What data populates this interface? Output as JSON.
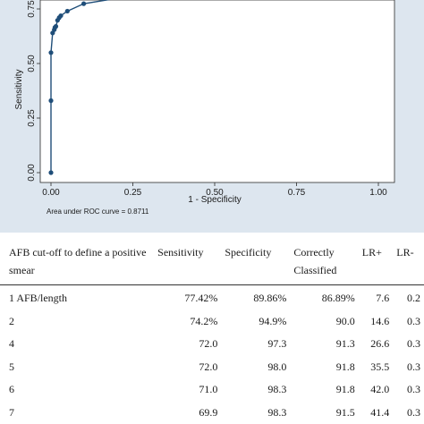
{
  "colors": {
    "panel_bg": "#dde6ef",
    "plot_bg": "#ffffff",
    "curve": "#1f4e79",
    "marker": "#1f4e79"
  },
  "chart_data": {
    "type": "line",
    "xlabel": "1 - Specificity",
    "ylabel": "Sensitivity",
    "xlim": [
      0,
      1
    ],
    "ylim": [
      0,
      0.8
    ],
    "xticks": [
      "0.00",
      "0.25",
      "0.50",
      "0.75",
      "1.00"
    ],
    "yticks": [
      "0.00",
      "0.25",
      "0.50",
      "0.75"
    ],
    "grid": false,
    "note": "Area under ROC curve = 0.8711",
    "series": [
      {
        "points": [
          {
            "x": 0.0,
            "y": 0.0
          },
          {
            "x": 0.0,
            "y": 0.33
          },
          {
            "x": 0.0,
            "y": 0.55
          },
          {
            "x": 0.005,
            "y": 0.64
          },
          {
            "x": 0.01,
            "y": 0.655
          },
          {
            "x": 0.012,
            "y": 0.665
          },
          {
            "x": 0.015,
            "y": 0.67
          },
          {
            "x": 0.02,
            "y": 0.698
          },
          {
            "x": 0.025,
            "y": 0.71
          },
          {
            "x": 0.03,
            "y": 0.719
          },
          {
            "x": 0.05,
            "y": 0.74
          },
          {
            "x": 0.1,
            "y": 0.774
          },
          {
            "x": 0.29,
            "y": 0.82
          }
        ]
      }
    ]
  },
  "table": {
    "headers": [
      "AFB cut-off to define a positive smear",
      "Sensitivity",
      "Specificity",
      "Correctly Classified",
      "LR+",
      "LR-"
    ],
    "rows": [
      [
        "1 AFB/length",
        "77.42%",
        "89.86%",
        "86.89%",
        "7.6",
        "0.2"
      ],
      [
        "2",
        "74.2%",
        "94.9%",
        "90.0",
        "14.6",
        "0.3"
      ],
      [
        "4",
        "72.0",
        "97.3",
        "91.3",
        "26.6",
        "0.3"
      ],
      [
        "5",
        "72.0",
        "98.0",
        "91.8",
        "35.5",
        "0.3"
      ],
      [
        "6",
        "71.0",
        "98.3",
        "91.8",
        "42.0",
        "0.3"
      ],
      [
        "7",
        "69.9",
        "98.3",
        "91.5",
        "41.4",
        "0.3"
      ]
    ]
  }
}
